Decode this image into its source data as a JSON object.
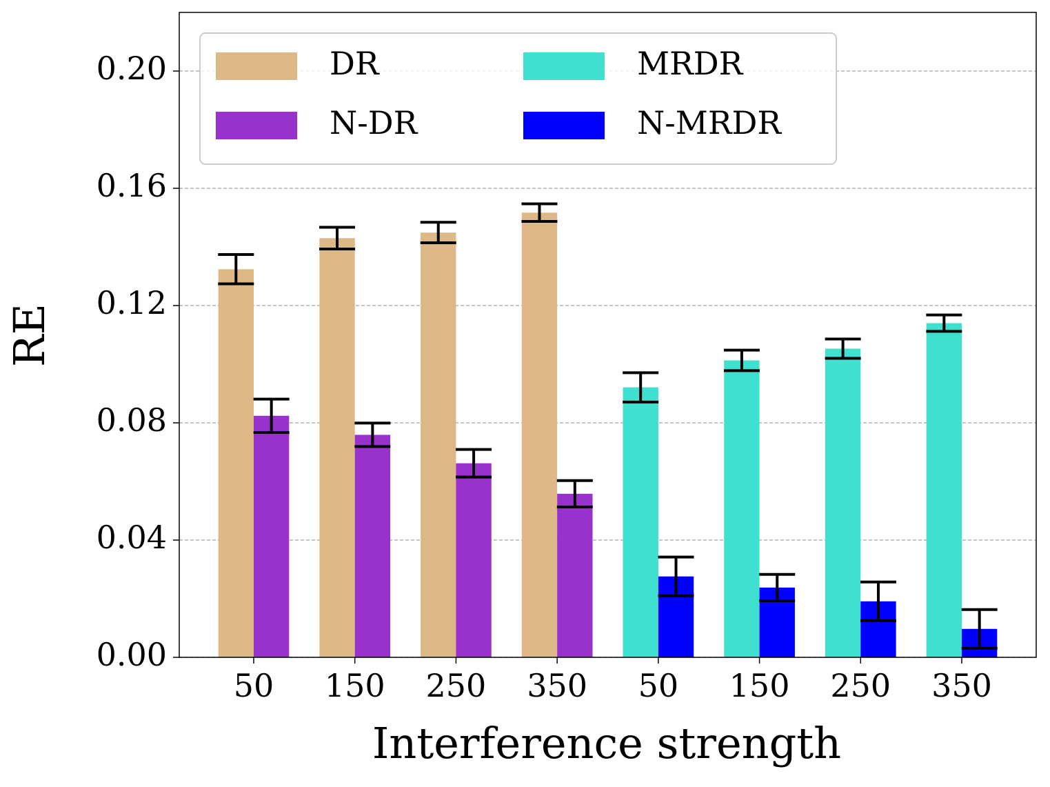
{
  "chart_data": {
    "type": "bar",
    "x_label": "Interference strength",
    "y_label": "RE",
    "categories": [
      "50",
      "150",
      "250",
      "350",
      "50",
      "150",
      "250",
      "350"
    ],
    "series": [
      {
        "name": "DR",
        "color": "#deb887",
        "values": [
          0.1324,
          0.143,
          0.1449,
          0.1517,
          null,
          null,
          null,
          null
        ],
        "errors": [
          0.005,
          0.0037,
          0.0035,
          0.003,
          null,
          null,
          null,
          null
        ]
      },
      {
        "name": "N-DR",
        "color": "#9932cc",
        "values": [
          0.0824,
          0.0759,
          0.0662,
          0.0558,
          null,
          null,
          null,
          null
        ],
        "errors": [
          0.0057,
          0.004,
          0.0047,
          0.0045,
          null,
          null,
          null,
          null
        ]
      },
      {
        "name": "MRDR",
        "color": "#40e0d0",
        "values": [
          null,
          null,
          null,
          null,
          0.0921,
          0.1013,
          0.1053,
          0.114
        ],
        "errors": [
          null,
          null,
          null,
          null,
          0.005,
          0.0035,
          0.0033,
          0.0028
        ]
      },
      {
        "name": "N-MRDR",
        "color": "#0000ff",
        "values": [
          null,
          null,
          null,
          null,
          0.0276,
          0.0238,
          0.0191,
          0.0097
        ],
        "errors": [
          null,
          null,
          null,
          null,
          0.0066,
          0.0045,
          0.0066,
          0.0066
        ]
      }
    ],
    "ylim": [
      0,
      0.22
    ],
    "yticks": [
      {
        "value": 0,
        "label": "0.00"
      },
      {
        "value": 0.04,
        "label": "0.04"
      },
      {
        "value": 0.08,
        "label": "0.08"
      },
      {
        "value": 0.12,
        "label": "0.12"
      },
      {
        "value": 0.16,
        "label": "0.16"
      },
      {
        "value": 0.2,
        "label": "0.20"
      }
    ],
    "grid": true,
    "legend": "upper left"
  }
}
